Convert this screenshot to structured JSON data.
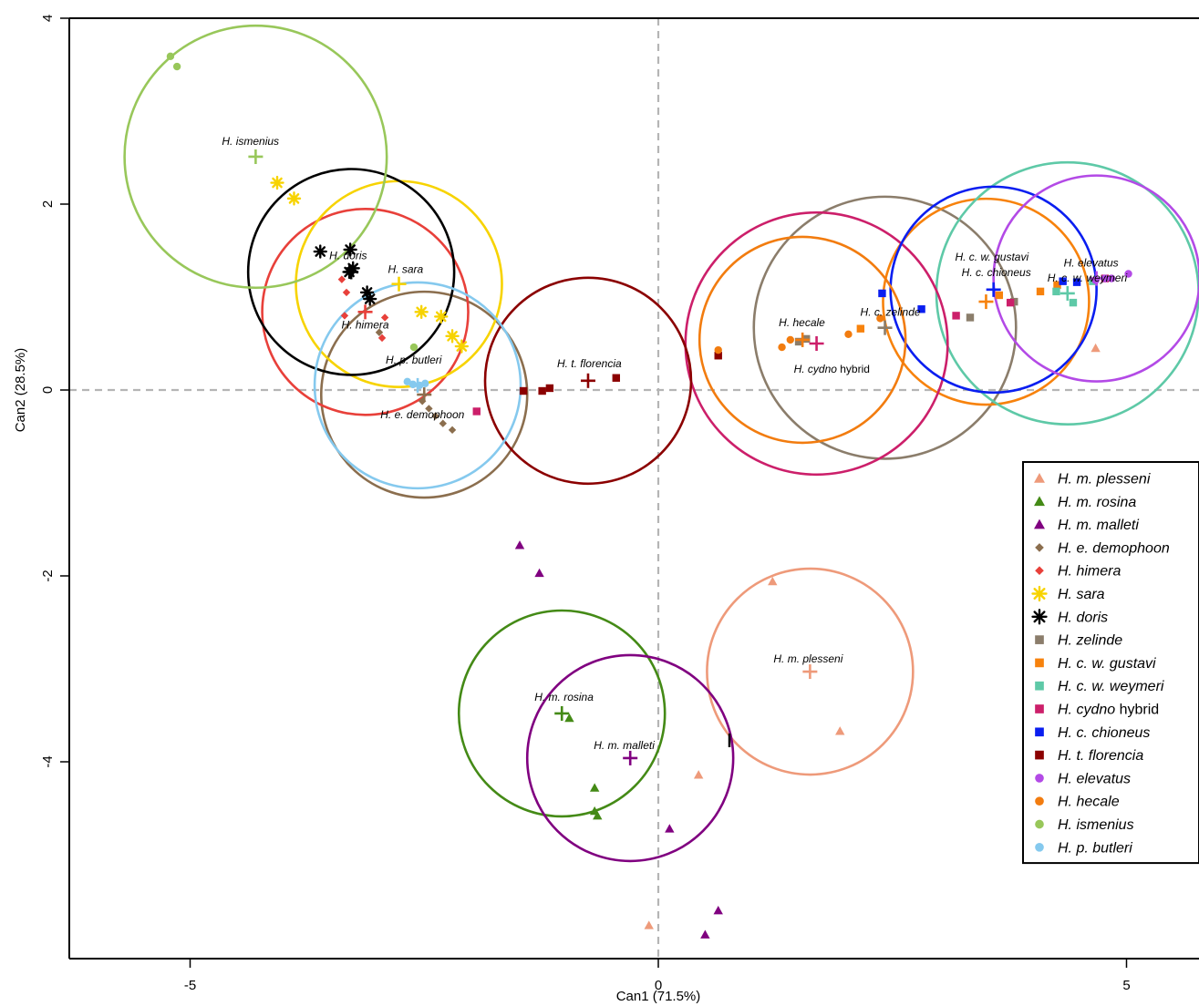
{
  "chart_data": {
    "type": "scatter",
    "xlabel": "Can1 (71.5%)",
    "ylabel": "Can2 (28.5%)",
    "xlim": [
      -6.3,
      5.8
    ],
    "ylim": [
      -6.3,
      4.0
    ],
    "xticks": [
      -5,
      0,
      5
    ],
    "yticks": [
      4,
      2,
      0,
      -2,
      -4
    ],
    "xtick_labels": [
      "-5",
      "0",
      "5"
    ],
    "ytick_labels": [
      "4",
      "2",
      "0",
      "-2",
      "-4"
    ],
    "reference_lines": {
      "x": 0,
      "y": 0,
      "style": "dashed",
      "color": "#b5b5b5"
    },
    "legend_position": "right",
    "grid": false,
    "series": [
      {
        "key": "plesseni",
        "legend_name": "H. m. plesseni",
        "legend_rest": "",
        "centroid_label": "H. m. plesseni",
        "color": "#ee9a7a",
        "marker": "triangle",
        "points": [
          [
            1.22,
            -2.06
          ],
          [
            1.94,
            -3.67
          ],
          [
            0.43,
            -4.14
          ],
          [
            -0.1,
            -5.76
          ],
          [
            4.67,
            0.45
          ]
        ],
        "centroid": [
          1.62,
          -3.03
        ],
        "radius": 1.1
      },
      {
        "key": "rosina",
        "legend_name": "H. m. rosina",
        "legend_rest": "",
        "centroid_label": "H. m. rosina",
        "color": "#448a16",
        "marker": "triangle",
        "points": [
          [
            -0.95,
            -3.53
          ],
          [
            -0.68,
            -4.28
          ],
          [
            -0.68,
            -4.53
          ],
          [
            -0.65,
            -4.58
          ]
        ],
        "centroid": [
          -1.03,
          -3.48
        ],
        "radius": 1.1
      },
      {
        "key": "malleti",
        "legend_name": "H. m. malleti",
        "legend_rest": "",
        "centroid_label": "H. m. malleti",
        "color": "#800080",
        "marker": "triangle",
        "points": [
          [
            -1.48,
            -1.67
          ],
          [
            -1.27,
            -1.97
          ],
          [
            0.12,
            -4.72
          ],
          [
            0.64,
            -5.6
          ],
          [
            0.5,
            -5.86
          ]
        ],
        "centroid": [
          -0.3,
          -3.96
        ],
        "radius": 1.1
      },
      {
        "key": "demophoon",
        "legend_name": "H. e. demophoon",
        "legend_rest": "",
        "centroid_label": "H. e. demophoon",
        "color": "#8b6e4e",
        "marker": "diamond",
        "points": [
          [
            -2.52,
            -0.12
          ],
          [
            -2.45,
            -0.2
          ],
          [
            -2.38,
            -0.28
          ],
          [
            -2.3,
            -0.36
          ],
          [
            -2.2,
            -0.43
          ],
          [
            -2.98,
            0.62
          ]
        ],
        "centroid": [
          -2.5,
          -0.05
        ],
        "radius": 1.1
      },
      {
        "key": "himera",
        "legend_name": "H. himera",
        "legend_rest": "",
        "centroid_label": "H. himera",
        "color": "#e8403a",
        "marker": "diamond",
        "points": [
          [
            -3.38,
            1.19
          ],
          [
            -3.33,
            1.05
          ],
          [
            -3.35,
            0.8
          ],
          [
            -2.95,
            0.56
          ],
          [
            -2.92,
            0.78
          ]
        ],
        "centroid": [
          -3.13,
          0.84
        ],
        "radius": 1.1
      },
      {
        "key": "sara",
        "legend_name": "H. sara",
        "legend_rest": "",
        "centroid_label": "H. sara",
        "color": "#f7d300",
        "marker": "asterisk",
        "points": [
          [
            -4.07,
            2.23
          ],
          [
            -3.89,
            2.06
          ],
          [
            -2.53,
            0.84
          ],
          [
            -2.32,
            0.79
          ],
          [
            -2.2,
            0.58
          ],
          [
            -2.1,
            0.47
          ]
        ],
        "centroid": [
          -2.77,
          1.14
        ],
        "radius": 1.1
      },
      {
        "key": "doris",
        "legend_name": "H. doris",
        "legend_rest": "",
        "centroid_label": "H. doris",
        "color": "#000000",
        "marker": "asterisk",
        "points": [
          [
            -3.61,
            1.49
          ],
          [
            -3.29,
            1.51
          ],
          [
            -3.26,
            1.31
          ],
          [
            -3.3,
            1.27
          ],
          [
            -3.11,
            1.05
          ],
          [
            -3.08,
            0.98
          ]
        ],
        "centroid": [
          -3.28,
          1.27
        ],
        "radius": 1.1
      },
      {
        "key": "zelinde",
        "legend_name": "H. zelinde",
        "legend_rest": "",
        "centroid_label": "H. c. zelinde",
        "color": "#8b7d6b",
        "marker": "square",
        "points": [
          [
            1.5,
            0.52
          ],
          [
            3.33,
            0.78
          ],
          [
            3.8,
            0.95
          ],
          [
            1.58,
            0.55
          ]
        ],
        "centroid": [
          2.42,
          0.67
        ],
        "radius": 1.4
      },
      {
        "key": "gustavi",
        "legend_name": "H. c. w. gustavi",
        "legend_rest": "",
        "centroid_label": "H. c. w. gustavi",
        "color": "#f7820c",
        "marker": "square",
        "points": [
          [
            2.16,
            0.66
          ],
          [
            3.64,
            1.02
          ],
          [
            4.08,
            1.06
          ],
          [
            4.26,
            1.13
          ]
        ],
        "centroid": [
          3.5,
          0.95
        ],
        "radius": 1.1
      },
      {
        "key": "weymeri",
        "legend_name": "H. c. w. weymeri",
        "legend_rest": "",
        "centroid_label": "H. c. w. weymeri",
        "color": "#5ec9a7",
        "marker": "square",
        "points": [
          [
            4.25,
            1.06
          ],
          [
            4.43,
            0.94
          ],
          [
            4.64,
            1.17
          ]
        ],
        "centroid": [
          4.37,
          1.04
        ],
        "radius": 1.4
      },
      {
        "key": "cydno",
        "legend_name": "H. cydno",
        "legend_rest": " hybrid",
        "centroid_label": "H. cydno",
        "centroid_label_rest": " hybrid",
        "color": "#cc1f6a",
        "marker": "square",
        "points": [
          [
            -1.94,
            -0.23
          ],
          [
            3.18,
            0.8
          ],
          [
            3.76,
            0.94
          ],
          [
            4.77,
            1.2
          ]
        ],
        "centroid": [
          1.69,
          0.5
        ],
        "radius": 1.4
      },
      {
        "key": "chioneus",
        "legend_name": "H. c. chioneus",
        "legend_rest": "",
        "centroid_label": "H. c. chioneus",
        "color": "#0a1ef0",
        "marker": "square",
        "points": [
          [
            2.39,
            1.04
          ],
          [
            2.81,
            0.87
          ],
          [
            4.32,
            1.17
          ],
          [
            4.47,
            1.16
          ]
        ],
        "centroid": [
          3.58,
          1.08
        ],
        "radius": 1.1
      },
      {
        "key": "florencia",
        "legend_name": "H. t. florencia",
        "legend_rest": "",
        "centroid_label": "H. t. florencia",
        "color": "#8b0000",
        "marker": "square",
        "points": [
          [
            -1.44,
            -0.01
          ],
          [
            -1.24,
            -0.01
          ],
          [
            -1.16,
            0.02
          ],
          [
            -0.45,
            0.13
          ],
          [
            0.64,
            0.37
          ]
        ],
        "centroid": [
          -0.75,
          0.1
        ],
        "radius": 1.1
      },
      {
        "key": "elevatus",
        "legend_name": "H. elevatus",
        "legend_rest": "",
        "centroid_label": "H. elevatus",
        "color": "#b34ae6",
        "marker": "circle",
        "points": [
          [
            4.67,
            1.18
          ],
          [
            4.77,
            1.2
          ],
          [
            4.84,
            1.2
          ],
          [
            5.02,
            1.25
          ]
        ],
        "centroid": [
          4.68,
          1.2
        ],
        "radius": 1.1
      },
      {
        "key": "hecale",
        "legend_name": "H. hecale",
        "legend_rest": "",
        "centroid_label": "H. hecale",
        "color": "#f27c0f",
        "marker": "circle",
        "points": [
          [
            0.64,
            0.43
          ],
          [
            1.32,
            0.46
          ],
          [
            1.41,
            0.54
          ],
          [
            2.03,
            0.6
          ],
          [
            2.37,
            0.77
          ]
        ],
        "centroid": [
          1.54,
          0.54
        ],
        "radius": 1.1
      },
      {
        "key": "ismenius",
        "legend_name": "H. ismenius",
        "legend_rest": "",
        "centroid_label": "H. ismenius",
        "color": "#98c75a",
        "marker": "circle",
        "points": [
          [
            -5.21,
            3.59
          ],
          [
            -5.14,
            3.48
          ],
          [
            -2.61,
            0.46
          ]
        ],
        "centroid": [
          -4.3,
          2.51
        ],
        "radius": 1.4
      },
      {
        "key": "butleri",
        "legend_name": "H. p. butleri",
        "legend_rest": "",
        "centroid_label": "H. p. butleri",
        "color": "#85c9ee",
        "marker": "circle",
        "points": [
          [
            -2.68,
            0.09
          ],
          [
            -2.62,
            0.06
          ],
          [
            -2.55,
            0.05
          ],
          [
            -2.49,
            0.07
          ]
        ],
        "centroid": [
          -2.57,
          0.05
        ],
        "radius": 1.1
      }
    ],
    "label_offsets": {
      "plesseni": [
        -40,
        -10
      ],
      "rosina": [
        -30,
        -14
      ],
      "malleti": [
        -40,
        -10
      ],
      "demophoon": [
        -48,
        26
      ],
      "himera": [
        -26,
        18
      ],
      "sara": [
        -12,
        -12
      ],
      "doris": [
        -24,
        -14
      ],
      "zelinde": [
        -27,
        -13
      ],
      "gustavi": [
        -34,
        -45
      ],
      "weymeri": [
        -22,
        -13
      ],
      "cydno": [
        -25,
        -24
      ],
      "chioneus": [
        -35,
        -15
      ],
      "florencia": [
        -34,
        -15
      ],
      "elevatus": [
        -36,
        -13
      ],
      "hecale": [
        -26,
        -15
      ],
      "ismenius": [
        -37,
        -13
      ],
      "butleri": [
        -35,
        -24
      ]
    },
    "cydno_label_offset": [
      -25,
      32
    ]
  }
}
